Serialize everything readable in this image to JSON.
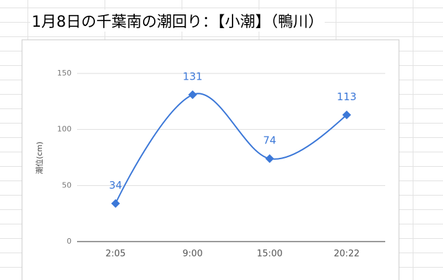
{
  "chart_data": {
    "type": "line",
    "title": "1月8日の千葉南の潮回り：【小潮】（鴨川）",
    "y_label": "潮位(cm)",
    "categories": [
      "2:05",
      "9:00",
      "15:00",
      "20:22"
    ],
    "values": [
      34,
      131,
      74,
      113
    ],
    "color": "#3c78d8",
    "ylim": [
      0,
      150
    ],
    "yticks": [
      0,
      50,
      100,
      150
    ],
    "grid": true,
    "smooth": true
  }
}
